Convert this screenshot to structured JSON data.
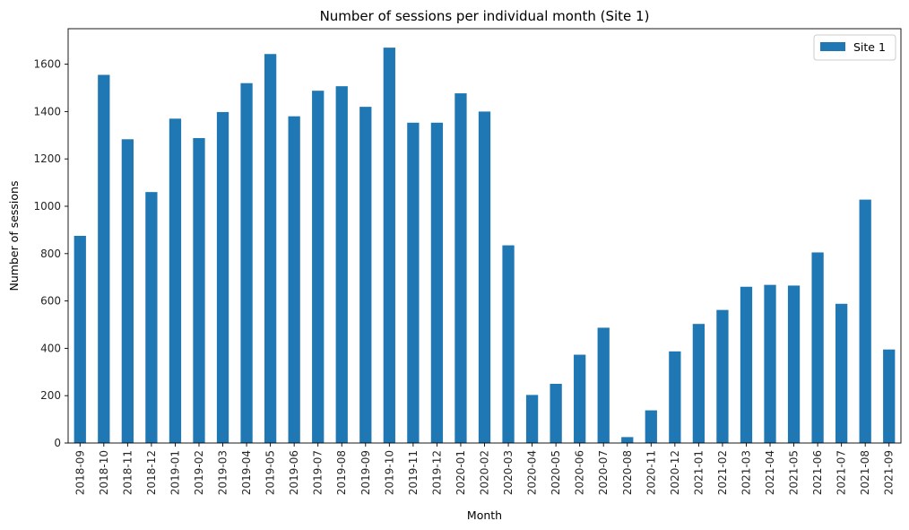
{
  "chart_data": {
    "type": "bar",
    "title": "Number of sessions per individual month (Site 1)",
    "xlabel": "Month",
    "ylabel": "Number of sessions",
    "ylim": [
      0,
      1750
    ],
    "yticks": [
      0,
      200,
      400,
      600,
      800,
      1000,
      1200,
      1400,
      1600
    ],
    "grid": false,
    "legend_position": "top-right",
    "categories": [
      "2018-09",
      "2018-10",
      "2018-11",
      "2018-12",
      "2019-01",
      "2019-02",
      "2019-03",
      "2019-04",
      "2019-05",
      "2019-06",
      "2019-07",
      "2019-08",
      "2019-09",
      "2019-10",
      "2019-11",
      "2019-12",
      "2020-01",
      "2020-02",
      "2020-03",
      "2020-04",
      "2020-05",
      "2020-06",
      "2020-07",
      "2020-08",
      "2020-11",
      "2020-12",
      "2021-01",
      "2021-02",
      "2021-03",
      "2021-04",
      "2021-05",
      "2021-06",
      "2021-07",
      "2021-08",
      "2021-09"
    ],
    "series": [
      {
        "name": "Site 1",
        "color": "#1f77b4",
        "values": [
          875,
          1555,
          1283,
          1060,
          1370,
          1288,
          1398,
          1520,
          1643,
          1380,
          1488,
          1507,
          1420,
          1670,
          1353,
          1353,
          1477,
          1400,
          835,
          203,
          250,
          373,
          487,
          25,
          138,
          387,
          503,
          562,
          660,
          668,
          665,
          805,
          588,
          1028,
          395
        ]
      }
    ]
  }
}
